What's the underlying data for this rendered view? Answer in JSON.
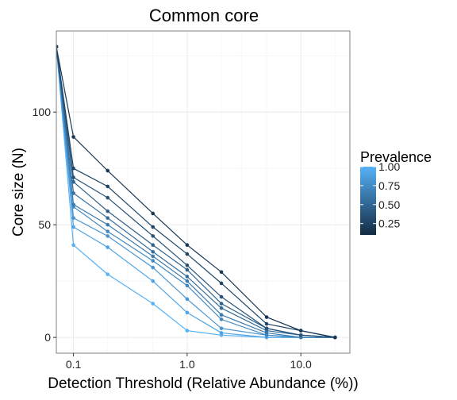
{
  "chart_data": {
    "type": "line",
    "title": "Common core",
    "xlabel": "Detection Threshold (Relative Abundance (%))",
    "ylabel": "Core size (N)",
    "x_scale": "log10",
    "xlim": [
      0.0707,
      27
    ],
    "ylim": [
      -7,
      136
    ],
    "x_ticks": [
      {
        "value": 0.1,
        "label": "0.1"
      },
      {
        "value": 1.0,
        "label": "1.0"
      },
      {
        "value": 10.0,
        "label": "10.0"
      }
    ],
    "y_ticks": [
      {
        "value": 0,
        "label": "0"
      },
      {
        "value": 50,
        "label": "50"
      },
      {
        "value": 100,
        "label": "100"
      }
    ],
    "grid": true,
    "legend": {
      "title": "Prevalence",
      "placement": "right",
      "type": "colorbar",
      "ticks": [
        "1.00",
        "0.75",
        "0.50",
        "0.25"
      ],
      "tick_values": [
        1.0,
        0.75,
        0.5,
        0.25
      ],
      "color_low": "#132b43",
      "color_high": "#56b1f7"
    },
    "x": [
      0.0707,
      0.1,
      0.2,
      0.5,
      1.0,
      2.0,
      5.0,
      10.0,
      20.0
    ],
    "series": [
      {
        "prevalence": 0.1,
        "values": [
          129,
          89,
          74,
          55,
          41,
          29,
          9,
          3,
          0
        ]
      },
      {
        "prevalence": 0.2,
        "values": [
          129,
          75,
          67,
          49,
          37,
          24,
          6,
          3,
          0
        ]
      },
      {
        "prevalence": 0.3,
        "values": [
          129,
          71,
          62,
          45,
          32,
          18,
          4,
          1,
          0
        ]
      },
      {
        "prevalence": 0.4,
        "values": [
          129,
          69,
          56,
          41,
          30,
          15,
          4,
          1,
          0
        ]
      },
      {
        "prevalence": 0.5,
        "values": [
          129,
          64,
          53,
          38,
          27,
          13,
          3,
          1,
          0
        ]
      },
      {
        "prevalence": 0.6,
        "values": [
          129,
          59,
          50,
          36,
          25,
          10,
          2,
          0,
          0
        ]
      },
      {
        "prevalence": 0.7,
        "values": [
          129,
          58,
          47,
          34,
          23,
          8,
          1,
          0,
          0
        ]
      },
      {
        "prevalence": 0.8,
        "values": [
          129,
          53,
          45,
          31,
          17,
          4,
          1,
          0,
          0
        ]
      },
      {
        "prevalence": 0.9,
        "values": [
          129,
          49,
          40,
          25,
          11,
          2,
          0,
          0,
          0
        ]
      },
      {
        "prevalence": 1.0,
        "values": [
          129,
          41,
          28,
          15,
          3,
          1,
          0,
          0,
          0
        ]
      }
    ]
  }
}
